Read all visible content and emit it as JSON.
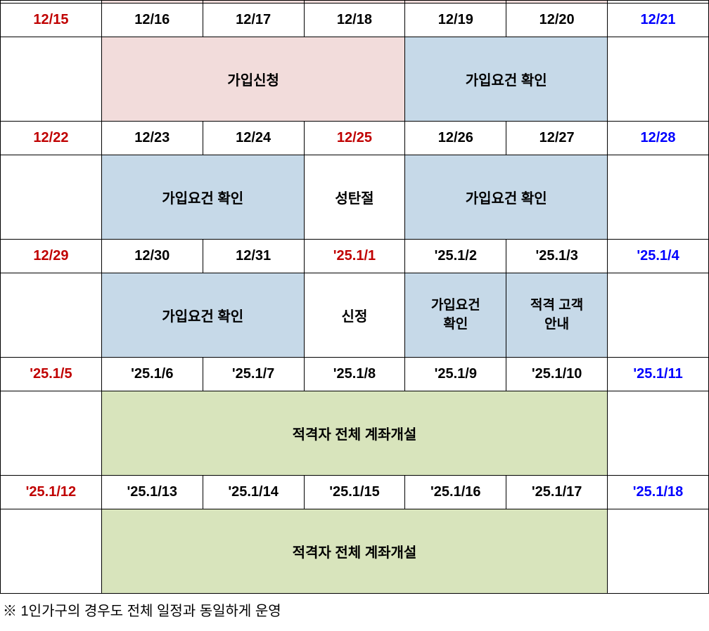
{
  "colors": {
    "border": "#000000",
    "bg_pink": "#f2dcdb",
    "bg_blue": "#c6d9e8",
    "bg_green": "#d8e4bc",
    "text_red": "#c00000",
    "text_blue": "#0000ff",
    "text_black": "#000000"
  },
  "typography": {
    "date_fontsize": 20,
    "content_fontsize": 20,
    "footnote_fontsize": 20,
    "font_weight": "bold"
  },
  "layout": {
    "columns": 7,
    "date_row_height": 48,
    "content_row_height": 120
  },
  "weeks": [
    {
      "dates": [
        {
          "text": "12/15",
          "color": "red"
        },
        {
          "text": "12/16",
          "color": "black"
        },
        {
          "text": "12/17",
          "color": "black"
        },
        {
          "text": "12/18",
          "color": "black"
        },
        {
          "text": "12/19",
          "color": "black"
        },
        {
          "text": "12/20",
          "color": "black"
        },
        {
          "text": "12/21",
          "color": "blue"
        }
      ],
      "events": [
        {
          "span": 1,
          "text": "",
          "bg": "none"
        },
        {
          "span": 3,
          "text": "가입신청",
          "bg": "pink"
        },
        {
          "span": 2,
          "text": "가입요건 확인",
          "bg": "blue"
        },
        {
          "span": 1,
          "text": "",
          "bg": "none"
        }
      ]
    },
    {
      "dates": [
        {
          "text": "12/22",
          "color": "red"
        },
        {
          "text": "12/23",
          "color": "black"
        },
        {
          "text": "12/24",
          "color": "black"
        },
        {
          "text": "12/25",
          "color": "red"
        },
        {
          "text": "12/26",
          "color": "black"
        },
        {
          "text": "12/27",
          "color": "black"
        },
        {
          "text": "12/28",
          "color": "blue"
        }
      ],
      "events": [
        {
          "span": 1,
          "text": "",
          "bg": "none"
        },
        {
          "span": 2,
          "text": "가입요건 확인",
          "bg": "blue"
        },
        {
          "span": 1,
          "text": "성탄절",
          "bg": "none"
        },
        {
          "span": 2,
          "text": "가입요건 확인",
          "bg": "blue"
        },
        {
          "span": 1,
          "text": "",
          "bg": "none"
        }
      ]
    },
    {
      "dates": [
        {
          "text": "12/29",
          "color": "red"
        },
        {
          "text": "12/30",
          "color": "black"
        },
        {
          "text": "12/31",
          "color": "black"
        },
        {
          "text": "'25.1/1",
          "color": "red"
        },
        {
          "text": "'25.1/2",
          "color": "black"
        },
        {
          "text": "'25.1/3",
          "color": "black"
        },
        {
          "text": "'25.1/4",
          "color": "blue"
        }
      ],
      "events": [
        {
          "span": 1,
          "text": "",
          "bg": "none"
        },
        {
          "span": 2,
          "text": "가입요건 확인",
          "bg": "blue"
        },
        {
          "span": 1,
          "text": "신정",
          "bg": "none"
        },
        {
          "span": 1,
          "text": "가입요건\n확인",
          "bg": "blue",
          "multiline": true
        },
        {
          "span": 1,
          "text": "적격 고객\n안내",
          "bg": "blue",
          "multiline": true,
          "smaller": true
        },
        {
          "span": 1,
          "text": "",
          "bg": "none"
        }
      ]
    },
    {
      "dates": [
        {
          "text": "'25.1/5",
          "color": "red"
        },
        {
          "text": "'25.1/6",
          "color": "black"
        },
        {
          "text": "'25.1/7",
          "color": "black"
        },
        {
          "text": "'25.1/8",
          "color": "black"
        },
        {
          "text": "'25.1/9",
          "color": "black"
        },
        {
          "text": "'25.1/10",
          "color": "black"
        },
        {
          "text": "'25.1/11",
          "color": "blue"
        }
      ],
      "events": [
        {
          "span": 1,
          "text": "",
          "bg": "none"
        },
        {
          "span": 5,
          "text": "적격자 전체 계좌개설",
          "bg": "green"
        },
        {
          "span": 1,
          "text": "",
          "bg": "none"
        }
      ]
    },
    {
      "dates": [
        {
          "text": "'25.1/12",
          "color": "red"
        },
        {
          "text": "'25.1/13",
          "color": "black"
        },
        {
          "text": "'25.1/14",
          "color": "black"
        },
        {
          "text": "'25.1/15",
          "color": "black"
        },
        {
          "text": "'25.1/16",
          "color": "black"
        },
        {
          "text": "'25.1/17",
          "color": "black"
        },
        {
          "text": "'25.1/18",
          "color": "blue"
        }
      ],
      "events": [
        {
          "span": 1,
          "text": "",
          "bg": "none"
        },
        {
          "span": 5,
          "text": "적격자 전체 계좌개설",
          "bg": "green"
        },
        {
          "span": 1,
          "text": "",
          "bg": "none"
        }
      ]
    }
  ],
  "footnote": "※ 1인가구의 경우도 전체 일정과 동일하게 운영"
}
